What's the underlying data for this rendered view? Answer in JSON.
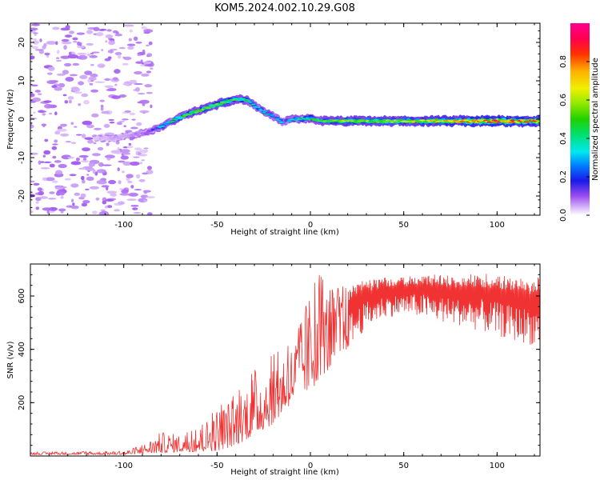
{
  "title": "KOM5.2024.002.10.29.G08",
  "chart_data": [
    {
      "type": "heatmap",
      "xlabel": "Height of straight line (km)",
      "ylabel": "Frequency (Hz)",
      "xlim": [
        -150,
        123
      ],
      "ylim": [
        -25,
        25
      ],
      "xticks": [
        -100,
        -50,
        0,
        50,
        100
      ],
      "yticks": [
        -20,
        -10,
        0,
        10,
        20
      ],
      "colorbar": {
        "label": "Normalized spectral amplitude",
        "range": [
          0,
          1
        ],
        "ticks": [
          "0.0",
          "0.2",
          "0.4",
          "0.6",
          "0.8"
        ],
        "colormap": "gist_ncar-like (white/violet → blue → cyan → green → yellow → orange → red → magenta)"
      },
      "ridge": {
        "x": [
          -115,
          -105,
          -95,
          -88,
          -80,
          -72,
          -65,
          -58,
          -52,
          -46,
          -40,
          -34,
          -30,
          -25,
          -20,
          -15,
          -10,
          -5,
          0,
          5,
          10,
          20,
          40,
          60,
          80,
          100,
          123
        ],
        "frequency": [
          -5,
          -5,
          -4,
          -3.5,
          -2,
          0,
          1.5,
          2.5,
          3.5,
          4.5,
          5.2,
          5,
          3.5,
          2,
          0.8,
          -0.8,
          0,
          0,
          0.3,
          -0.4,
          -0.5,
          -0.5,
          -0.5,
          -0.5,
          -0.5,
          -0.5,
          -0.5
        ],
        "amplitude": [
          0.1,
          0.12,
          0.15,
          0.2,
          0.3,
          0.42,
          0.45,
          0.5,
          0.48,
          0.5,
          0.45,
          0.4,
          0.35,
          0.32,
          0.3,
          0.28,
          0.32,
          0.35,
          0.42,
          0.45,
          0.5,
          0.55,
          0.55,
          0.6,
          0.65,
          0.78,
          0.7
        ]
      },
      "noise_region_x": [
        -150,
        -85
      ],
      "grid": false
    },
    {
      "type": "line",
      "xlabel": "Height of straight line (km)",
      "ylabel": "SNR (v/v)",
      "xlim": [
        -150,
        123
      ],
      "ylim": [
        0,
        720
      ],
      "xticks": [
        -100,
        -50,
        0,
        50,
        100
      ],
      "yticks": [
        200,
        400,
        600
      ],
      "color": "#f03232",
      "envelope": {
        "x": [
          -150,
          -100,
          -90,
          -80,
          -70,
          -60,
          -50,
          -40,
          -30,
          -20,
          -10,
          -5,
          0,
          5,
          10,
          20,
          30,
          40,
          50,
          60,
          70,
          80,
          90,
          100,
          110,
          123
        ],
        "low": [
          5,
          5,
          8,
          12,
          15,
          15,
          20,
          40,
          80,
          120,
          200,
          250,
          230,
          300,
          320,
          400,
          480,
          520,
          530,
          520,
          500,
          490,
          470,
          450,
          430,
          410
        ],
        "high": [
          15,
          18,
          40,
          90,
          80,
          100,
          180,
          230,
          320,
          380,
          420,
          500,
          620,
          680,
          620,
          640,
          660,
          670,
          670,
          680,
          680,
          670,
          690,
          680,
          670,
          670
        ]
      },
      "grid": false
    }
  ]
}
